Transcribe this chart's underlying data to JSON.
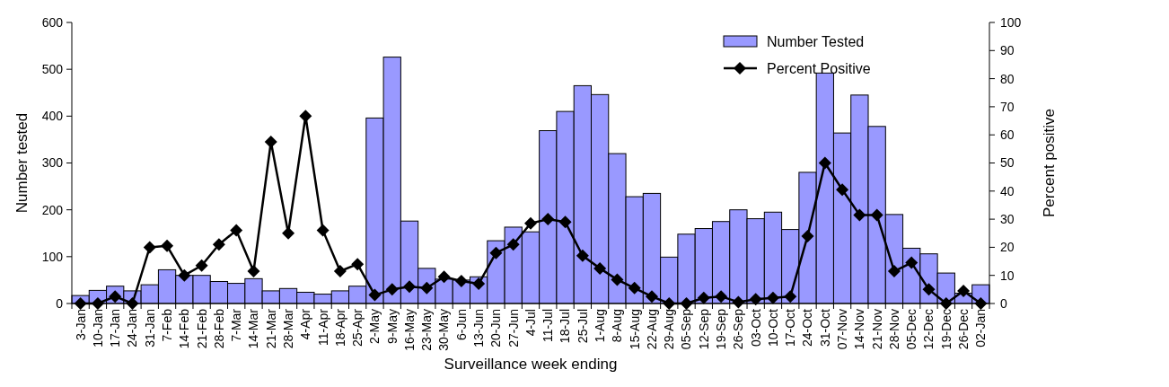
{
  "chart_data": {
    "type": "bar",
    "xlabel": "Surveillance week ending",
    "ylabel": "Number tested",
    "y2label": "Percent positive",
    "categories": [
      "3-Jan",
      "10-Jan",
      "17-Jan",
      "24-Jan",
      "31-Jan",
      "7-Feb",
      "14-Feb",
      "21-Feb",
      "28-Feb",
      "7-Mar",
      "14-Mar",
      "21-Mar",
      "28-Mar",
      "4-Apr",
      "11-Apr",
      "18-Apr",
      "25-Apr",
      "2-May",
      "9-May",
      "16-May",
      "23-May",
      "30-May",
      "6-Jun",
      "13-Jun",
      "20-Jun",
      "27-Jun",
      "4-Jul",
      "11-Jul",
      "18-Jul",
      "25-Jul",
      "1-Aug",
      "8-Aug",
      "15-Aug",
      "22-Aug",
      "29-Aug",
      "05-Sep",
      "12-Sep",
      "19-Sep",
      "26-Sep",
      "03-Oct",
      "10-Oct",
      "17-Oct",
      "24-Oct",
      "31-Oct",
      "07-Nov",
      "14-Nov",
      "21-Nov",
      "28-Nov",
      "05-Dec",
      "12-Dec",
      "19-Dec",
      "26-Dec",
      "02-Jan"
    ],
    "series": [
      {
        "name": "Number Tested",
        "color": "#9999ff",
        "values": [
          17,
          28,
          37,
          27,
          40,
          72,
          60,
          60,
          47,
          43,
          53,
          27,
          32,
          24,
          20,
          27,
          37,
          396,
          526,
          176,
          75,
          52,
          50,
          57,
          134,
          163,
          153,
          369,
          410,
          465,
          446,
          320,
          228,
          235,
          99,
          148,
          160,
          175,
          200,
          181,
          195,
          158,
          280,
          492,
          364,
          445,
          378,
          190,
          118,
          106,
          65,
          22,
          40
        ]
      },
      {
        "name": "Percent Positive",
        "type": "line",
        "axis": "y2",
        "color": "#000000",
        "marker": "diamond",
        "values": [
          0,
          0,
          2.5,
          0,
          20,
          20.5,
          10,
          13.5,
          21,
          26,
          11.5,
          57.5,
          25,
          66.7,
          26,
          11.5,
          14,
          3,
          5,
          6,
          5.5,
          9.5,
          8,
          7,
          18,
          21,
          28.5,
          30,
          29,
          17,
          12.5,
          8.5,
          5.5,
          2.5,
          0,
          0,
          2,
          2.5,
          0.5,
          1.5,
          2,
          2.5,
          24,
          50,
          40.5,
          31.5,
          31.5,
          11.5,
          14.5,
          5,
          0,
          4.5,
          0
        ]
      }
    ],
    "ylim": [
      0,
      600
    ],
    "yticks": [
      0,
      100,
      200,
      300,
      400,
      500,
      600
    ],
    "y2lim": [
      0,
      100
    ],
    "y2ticks": [
      0,
      10,
      20,
      30,
      40,
      50,
      60,
      70,
      80,
      90,
      100
    ],
    "legend": "top right",
    "grid": false
  }
}
